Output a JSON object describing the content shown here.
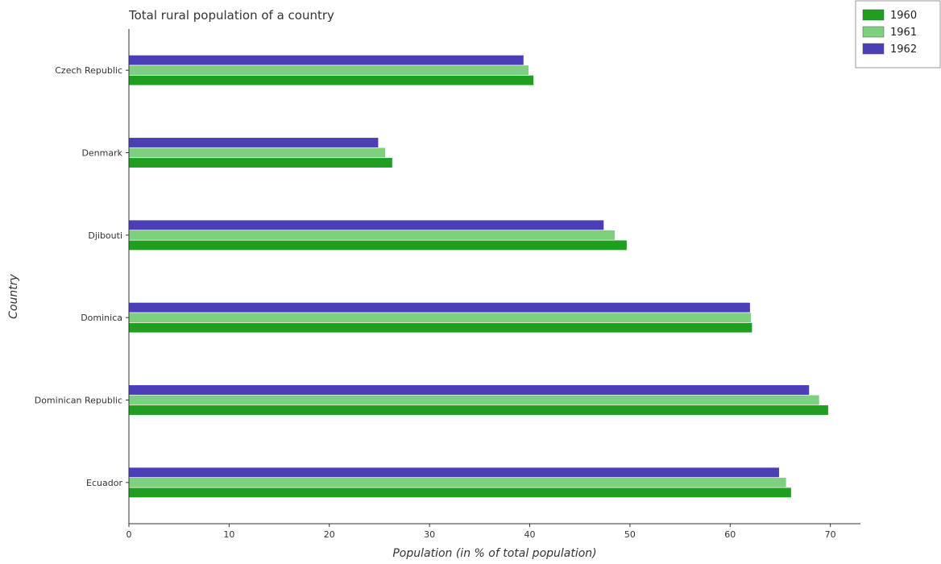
{
  "chart_data": {
    "type": "bar",
    "orientation": "horizontal",
    "title": "Total rural population of a country",
    "xlabel": "Population (in % of total population)",
    "ylabel": "Country",
    "xlim": [
      0,
      73
    ],
    "x_ticks": [
      0,
      10,
      20,
      30,
      40,
      50,
      60,
      70
    ],
    "categories": [
      "Czech Republic",
      "Denmark",
      "Djibouti",
      "Dominica",
      "Dominican Republic",
      "Ecuador"
    ],
    "series": [
      {
        "name": "1960",
        "color": "#1f9e1f",
        "values": [
          40.4,
          26.3,
          49.7,
          62.2,
          69.8,
          66.1
        ]
      },
      {
        "name": "1961",
        "color": "#7ecf7e",
        "values": [
          39.9,
          25.6,
          48.5,
          62.1,
          68.9,
          65.6
        ]
      },
      {
        "name": "1962",
        "color": "#4b3fb8",
        "values": [
          39.4,
          24.9,
          47.4,
          62.0,
          67.9,
          64.9
        ]
      }
    ],
    "legend_position": "top-right",
    "grid": false
  }
}
